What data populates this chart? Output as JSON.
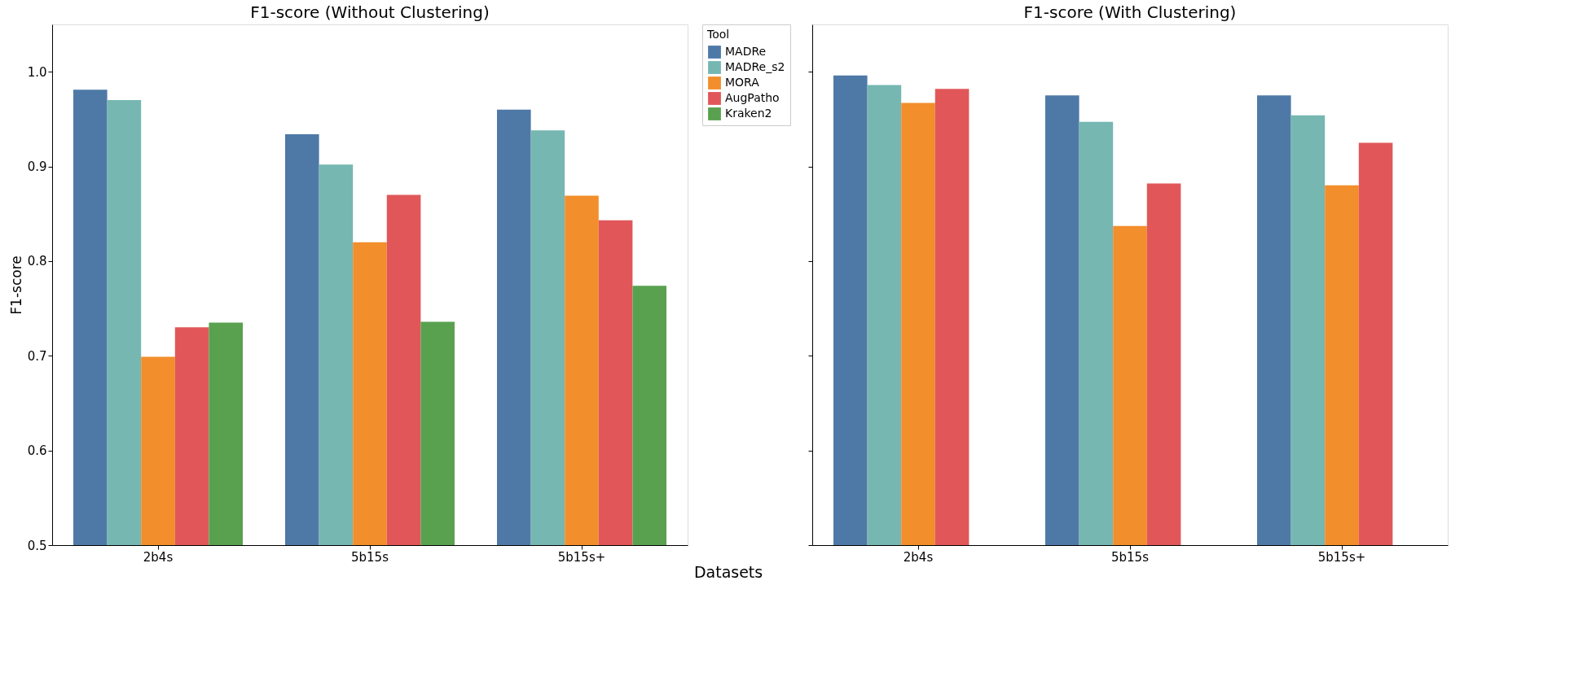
{
  "chart_data": [
    {
      "type": "bar",
      "title": "F1-score (Without Clustering)",
      "xlabel": "Datasets",
      "ylabel": "F1-score",
      "legend_title": "Tool",
      "legend": "right",
      "grid": false,
      "categories": [
        "2b4s",
        "5b15s",
        "5b15s+"
      ],
      "ylim": [
        0.5,
        1.05
      ],
      "yticks": [
        {
          "value": 0.5,
          "label": "0.5"
        },
        {
          "value": 0.6,
          "label": "0.6"
        },
        {
          "value": 0.7,
          "label": "0.7"
        },
        {
          "value": 0.8,
          "label": "0.8"
        },
        {
          "value": 0.9,
          "label": "0.9"
        },
        {
          "value": 1.0,
          "label": "1.0"
        }
      ],
      "series": [
        {
          "name": "MADRe",
          "color": "#4e79a7",
          "values": [
            0.981,
            0.934,
            0.96
          ]
        },
        {
          "name": "MADRe_s2",
          "color": "#76b7b2",
          "values": [
            0.97,
            0.902,
            0.938
          ]
        },
        {
          "name": "MORA",
          "color": "#f28e2b",
          "values": [
            0.699,
            0.82,
            0.869
          ]
        },
        {
          "name": "AugPatho",
          "color": "#e15759",
          "values": [
            0.73,
            0.87,
            0.843
          ]
        },
        {
          "name": "Kraken2",
          "color": "#59a14f",
          "values": [
            0.735,
            0.736,
            0.774
          ]
        }
      ]
    },
    {
      "type": "bar",
      "title": "F1-score (With Clustering)",
      "grid": false,
      "tick_labels": "x",
      "categories": [
        "2b4s",
        "5b15s",
        "5b15s+"
      ],
      "ylim": [
        0.5,
        1.05
      ],
      "yticks": [
        {
          "value": 0.5,
          "label": null
        },
        {
          "value": 0.6,
          "label": null
        },
        {
          "value": 0.7,
          "label": null
        },
        {
          "value": 0.8,
          "label": null
        },
        {
          "value": 0.9,
          "label": null
        },
        {
          "value": 1.0,
          "label": null
        }
      ],
      "series": [
        {
          "name": "MADRe",
          "color": "#4e79a7",
          "values": [
            0.996,
            0.975,
            0.975
          ]
        },
        {
          "name": "MADRe_s2",
          "color": "#76b7b2",
          "values": [
            0.986,
            0.947,
            0.954
          ]
        },
        {
          "name": "MORA",
          "color": "#f28e2b",
          "values": [
            0.967,
            0.837,
            0.88
          ]
        },
        {
          "name": "AugPatho",
          "color": "#e15759",
          "values": [
            0.982,
            0.882,
            0.925
          ]
        }
      ]
    }
  ]
}
